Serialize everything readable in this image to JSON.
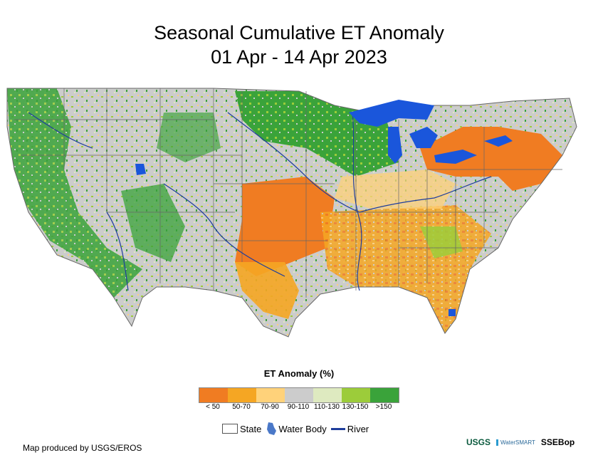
{
  "title": {
    "line1": "Seasonal Cumulative ET Anomaly",
    "line2": "01 Apr - 14 Apr 2023"
  },
  "legend": {
    "title": "ET Anomaly (%)",
    "classes": [
      {
        "label": "< 50",
        "color": "#f07c22"
      },
      {
        "label": "50-70",
        "color": "#f5a623"
      },
      {
        "label": "70-90",
        "color": "#ffd27a"
      },
      {
        "label": "90-110",
        "color": "#cccccc"
      },
      {
        "label": "110-130",
        "color": "#deeac0"
      },
      {
        "label": "130-150",
        "color": "#9ccc3a"
      },
      {
        "label": ">150",
        "color": "#3aa33a"
      }
    ],
    "key": {
      "state": "State",
      "water": "Water Body",
      "river": "River"
    }
  },
  "credit": "Map produced by USGS/EROS",
  "logos": {
    "usgs": "USGS",
    "smart": "WaterSMART",
    "ssebop": "SSEBop"
  }
}
